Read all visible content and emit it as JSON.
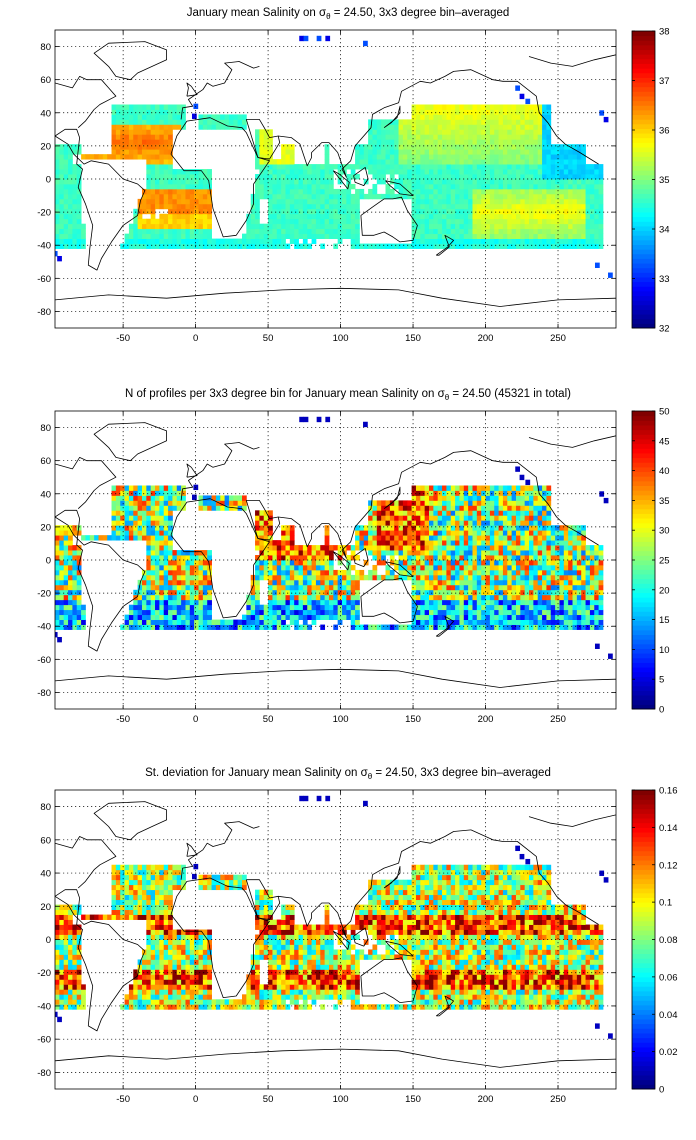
{
  "chart_data": [
    {
      "type": "heatmap",
      "title_pre": "January mean Salinity on ",
      "title_sym": "σ",
      "title_sub": "θ",
      "title_post": " = 24.50, 3x3 degree bin–averaged",
      "xlim": [
        -97,
        290
      ],
      "ylim": [
        -90,
        90
      ],
      "xticks": [
        -50,
        0,
        50,
        100,
        150,
        200,
        250
      ],
      "yticks": [
        -80,
        -60,
        -40,
        -20,
        0,
        20,
        40,
        60,
        80
      ],
      "grid": true,
      "colormap": "jet",
      "colorbar": {
        "range": [
          32,
          38
        ],
        "ticks": [
          32,
          33,
          34,
          35,
          36,
          37,
          38
        ]
      },
      "field": "salinity"
    },
    {
      "type": "heatmap",
      "title_pre": "N of profiles per 3x3 degree bin for January mean Salinity on ",
      "title_sym": "σ",
      "title_sub": "θ",
      "title_post": " = 24.50 (45321 in total)",
      "xlim": [
        -97,
        290
      ],
      "ylim": [
        -90,
        90
      ],
      "xticks": [
        -50,
        0,
        50,
        100,
        150,
        200,
        250
      ],
      "yticks": [
        -80,
        -60,
        -40,
        -20,
        0,
        20,
        40,
        60,
        80
      ],
      "grid": true,
      "colormap": "jet",
      "colorbar": {
        "range": [
          0,
          50
        ],
        "ticks": [
          0,
          5,
          10,
          15,
          20,
          25,
          30,
          35,
          40,
          45,
          50
        ]
      },
      "field": "count"
    },
    {
      "type": "heatmap",
      "title_pre": "St. deviation for January mean Salinity on ",
      "title_sym": "σ",
      "title_sub": "θ",
      "title_post": " = 24.50, 3x3 degree bin–averaged",
      "xlim": [
        -97,
        290
      ],
      "ylim": [
        -90,
        90
      ],
      "xticks": [
        -50,
        0,
        50,
        100,
        150,
        200,
        250
      ],
      "yticks": [
        -80,
        -60,
        -40,
        -20,
        0,
        20,
        40,
        60,
        80
      ],
      "grid": true,
      "colormap": "jet",
      "colorbar": {
        "range": [
          0,
          0.16
        ],
        "ticks": [
          0,
          0.02,
          0.04,
          0.06,
          0.08,
          0.1,
          0.12,
          0.14,
          0.16
        ]
      },
      "field": "std"
    }
  ]
}
